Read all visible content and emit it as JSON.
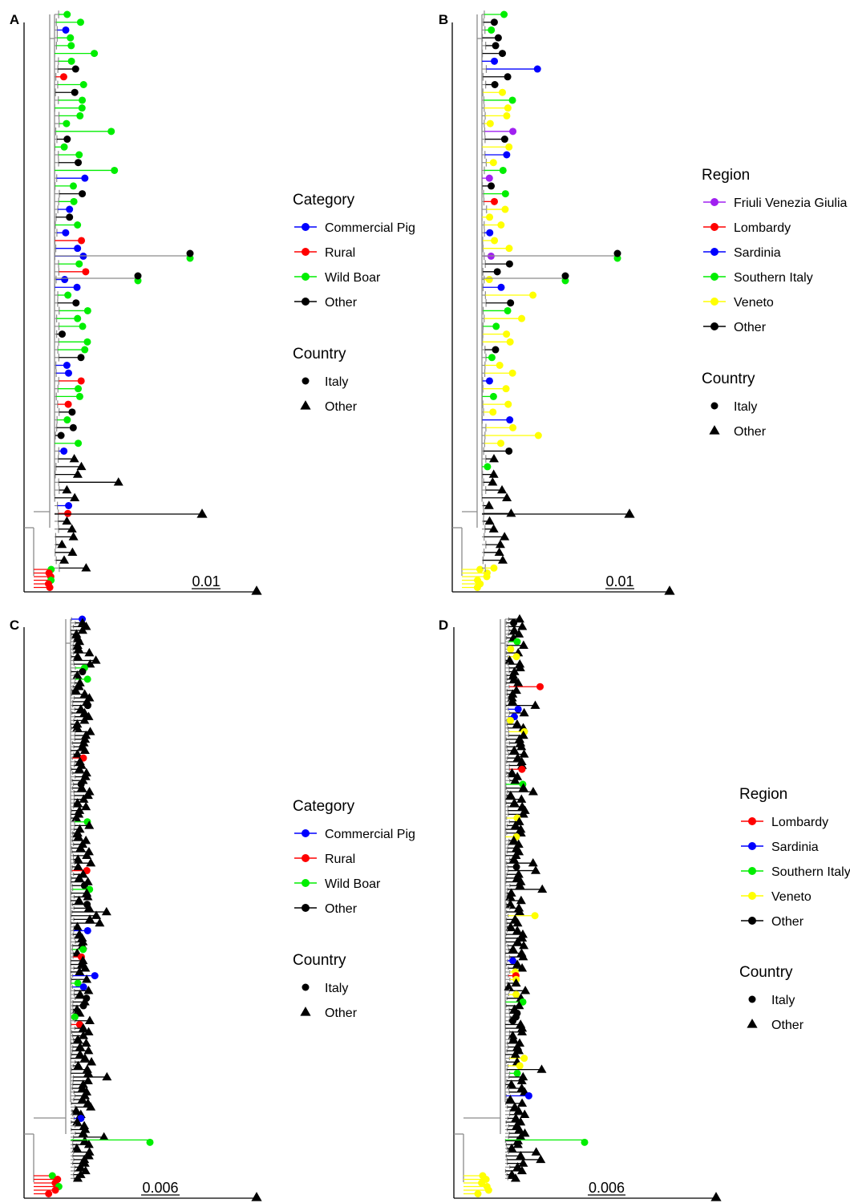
{
  "colors": {
    "blue": "#0000ff",
    "red": "#ff0000",
    "green": "#00ee00",
    "yellow": "#ffff00",
    "purple": "#a020f0",
    "black": "#000000",
    "branch": "#8c8c8c"
  },
  "panels": [
    {
      "letter": "A",
      "scale_label": "0.01",
      "legend": {
        "color_title": "Category",
        "color_items": [
          {
            "label": "Commercial Pig",
            "color": "#0000ff"
          },
          {
            "label": "Rural",
            "color": "#ff0000"
          },
          {
            "label": "Wild Boar",
            "color": "#00ee00"
          },
          {
            "label": "Other",
            "color": "#000000"
          }
        ],
        "shape_title": "Country",
        "shape_items": [
          {
            "label": "Italy",
            "shape": "circle"
          },
          {
            "label": "Other",
            "shape": "triangle"
          }
        ]
      }
    },
    {
      "letter": "B",
      "scale_label": "0.01",
      "legend": {
        "color_title": "Region",
        "color_items": [
          {
            "label": "Friuli Venezia Giulia",
            "color": "#a020f0"
          },
          {
            "label": "Lombardy",
            "color": "#ff0000"
          },
          {
            "label": "Sardinia",
            "color": "#0000ff"
          },
          {
            "label": "Southern Italy",
            "color": "#00ee00"
          },
          {
            "label": "Veneto",
            "color": "#ffff00"
          },
          {
            "label": "Other",
            "color": "#000000"
          }
        ],
        "shape_title": "Country",
        "shape_items": [
          {
            "label": "Italy",
            "shape": "circle"
          },
          {
            "label": "Other",
            "shape": "triangle"
          }
        ]
      }
    },
    {
      "letter": "C",
      "scale_label": "0.006",
      "legend": {
        "color_title": "Category",
        "color_items": [
          {
            "label": "Commercial Pig",
            "color": "#0000ff"
          },
          {
            "label": "Rural",
            "color": "#ff0000"
          },
          {
            "label": "Wild Boar",
            "color": "#00ee00"
          },
          {
            "label": "Other",
            "color": "#000000"
          }
        ],
        "shape_title": "Country",
        "shape_items": [
          {
            "label": "Italy",
            "shape": "circle"
          },
          {
            "label": "Other",
            "shape": "triangle"
          }
        ]
      }
    },
    {
      "letter": "D",
      "scale_label": "0.006",
      "legend": {
        "color_title": "Region",
        "color_items": [
          {
            "label": "Lombardy",
            "color": "#ff0000"
          },
          {
            "label": "Sardinia",
            "color": "#0000ff"
          },
          {
            "label": "Southern Italy",
            "color": "#00ee00"
          },
          {
            "label": "Veneto",
            "color": "#ffff00"
          },
          {
            "label": "Other",
            "color": "#000000"
          }
        ],
        "shape_title": "Country",
        "shape_items": [
          {
            "label": "Italy",
            "shape": "circle"
          },
          {
            "label": "Other",
            "shape": "triangle"
          }
        ]
      }
    }
  ]
}
